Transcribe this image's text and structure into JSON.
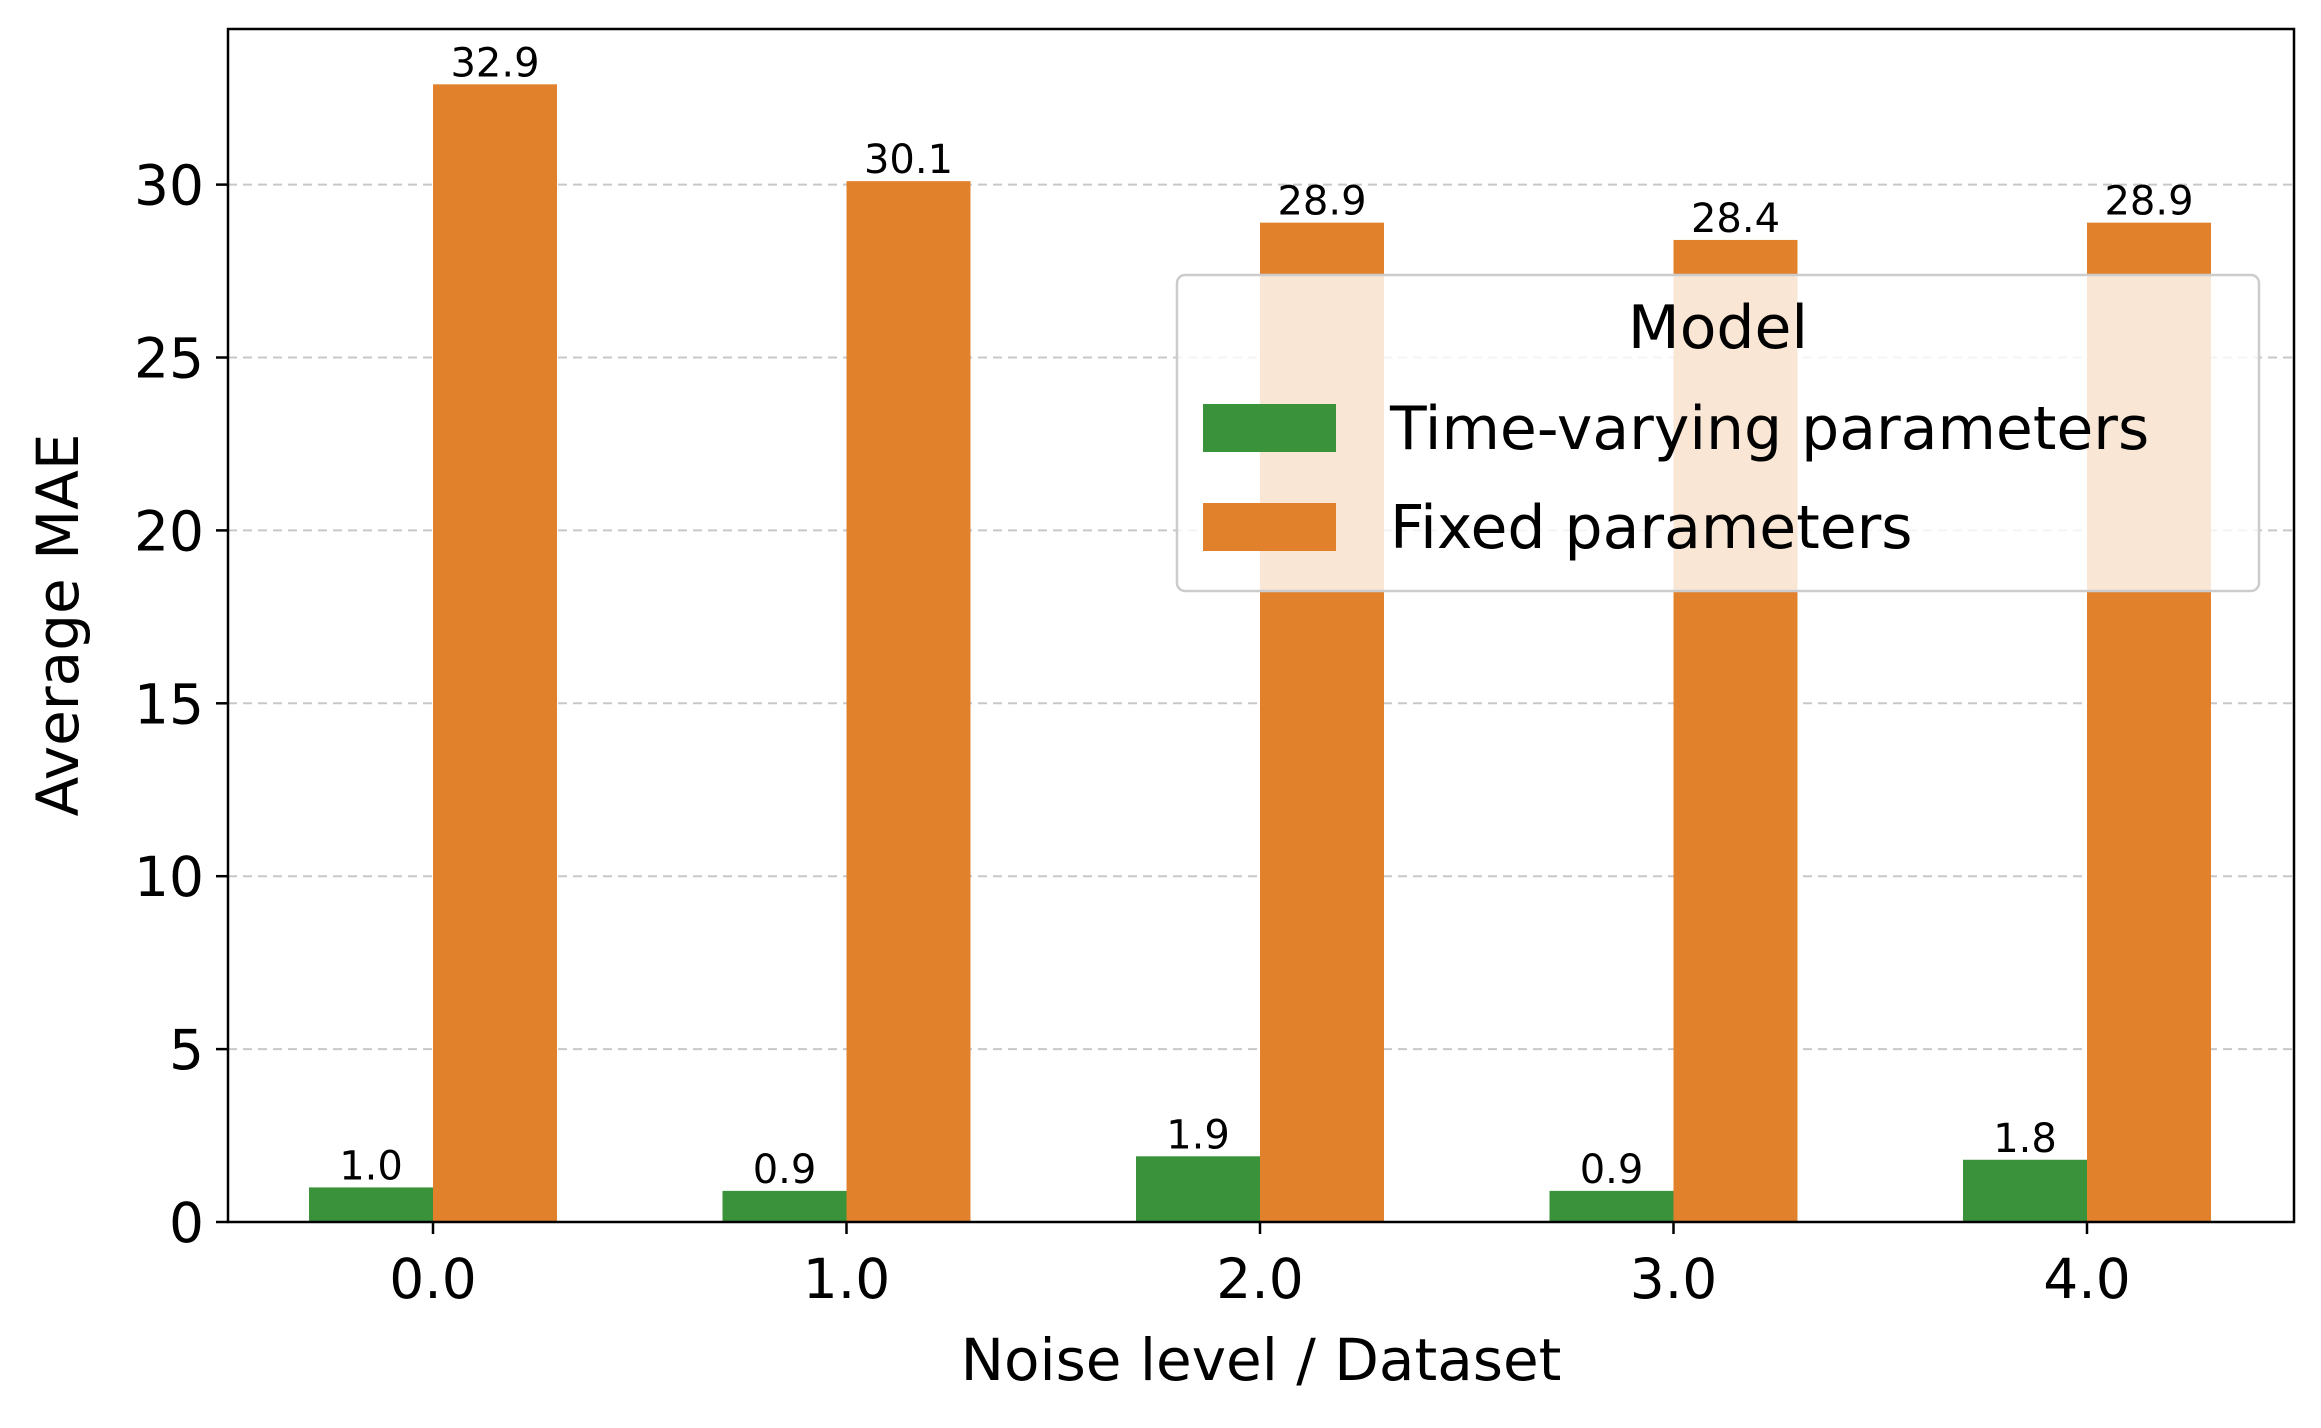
{
  "chart_data": {
    "type": "bar",
    "title": "",
    "xlabel": "Noise level / Dataset",
    "ylabel": "Average MAE",
    "categories": [
      "0.0",
      "1.0",
      "2.0",
      "3.0",
      "4.0"
    ],
    "series": [
      {
        "name": "Time-varying parameters",
        "color": "#3a923a",
        "values": [
          1.0,
          0.9,
          1.9,
          0.9,
          1.8
        ],
        "labels": [
          "1.0",
          "0.9",
          "1.9",
          "0.9",
          "1.8"
        ]
      },
      {
        "name": "Fixed parameters",
        "color": "#e1812c",
        "values": [
          32.9,
          30.1,
          28.9,
          28.4,
          28.9
        ],
        "labels": [
          "32.9",
          "30.1",
          "28.9",
          "28.4",
          "28.9"
        ]
      }
    ],
    "ylim": [
      0,
      34.5
    ],
    "yticks": [
      0,
      5,
      10,
      15,
      20,
      25,
      30
    ],
    "ytick_labels": [
      "0",
      "5",
      "10",
      "15",
      "20",
      "25",
      "30"
    ],
    "grid": "y, dashed",
    "legend": {
      "title": "Model",
      "position": "upper-right"
    }
  }
}
